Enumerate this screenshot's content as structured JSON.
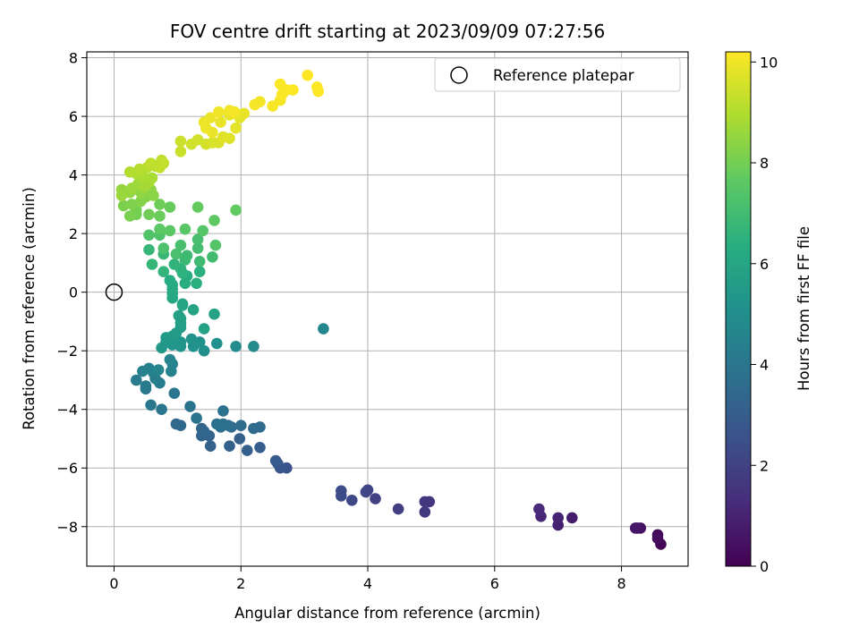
{
  "chart_data": {
    "type": "scatter",
    "title": "FOV centre drift starting at 2023/09/09 07:27:56",
    "xlabel": "Angular distance from reference (arcmin)",
    "ylabel": "Rotation from reference (arcmin)",
    "colorbar_label": "Hours from first FF file",
    "xlim": [
      -0.43,
      9.05
    ],
    "ylim": [
      -9.35,
      8.2
    ],
    "clim": [
      0,
      10.2
    ],
    "x_ticks": [
      0,
      2,
      4,
      6,
      8
    ],
    "y_ticks": [
      -8,
      -6,
      -4,
      -2,
      0,
      2,
      4,
      6,
      8
    ],
    "colorbar_ticks": [
      0,
      2,
      4,
      6,
      8,
      10
    ],
    "grid": true,
    "legend": {
      "position": "top-right",
      "entries": [
        "Reference platepar"
      ]
    },
    "reference_point": {
      "x": 0,
      "y": 0
    },
    "colormap": "viridis",
    "points": [
      [
        8.62,
        -8.6,
        0.1
      ],
      [
        8.57,
        -8.28,
        0.2
      ],
      [
        8.57,
        -8.4,
        0.3
      ],
      [
        8.3,
        -8.05,
        0.45
      ],
      [
        8.25,
        -8.05,
        0.55
      ],
      [
        8.22,
        -8.05,
        0.65
      ],
      [
        7.22,
        -7.7,
        0.8
      ],
      [
        7.0,
        -7.95,
        0.9
      ],
      [
        7.0,
        -7.7,
        1.0
      ],
      [
        6.73,
        -7.65,
        1.1
      ],
      [
        6.7,
        -7.4,
        1.2
      ],
      [
        4.97,
        -7.15,
        1.5
      ],
      [
        4.9,
        -7.15,
        1.6
      ],
      [
        4.9,
        -7.5,
        1.7
      ],
      [
        4.48,
        -7.4,
        1.85
      ],
      [
        4.12,
        -7.05,
        1.95
      ],
      [
        4.0,
        -6.75,
        2.05
      ],
      [
        3.97,
        -6.82,
        2.1
      ],
      [
        3.75,
        -7.1,
        2.2
      ],
      [
        3.58,
        -6.95,
        2.3
      ],
      [
        3.58,
        -6.78,
        2.35
      ],
      [
        2.72,
        -6.0,
        2.6
      ],
      [
        2.62,
        -6.0,
        2.7
      ],
      [
        2.58,
        -5.85,
        2.8
      ],
      [
        2.55,
        -5.75,
        2.9
      ],
      [
        2.3,
        -5.3,
        3.0
      ],
      [
        2.1,
        -5.4,
        3.05
      ],
      [
        1.98,
        -5.0,
        3.1
      ],
      [
        1.82,
        -5.25,
        3.15
      ],
      [
        1.52,
        -5.25,
        3.2
      ],
      [
        1.5,
        -4.9,
        3.25
      ],
      [
        1.42,
        -4.75,
        3.3
      ],
      [
        1.38,
        -4.9,
        3.3
      ],
      [
        1.38,
        -4.65,
        3.35
      ],
      [
        1.05,
        -4.55,
        3.4
      ],
      [
        0.98,
        -4.5,
        3.45
      ],
      [
        2.3,
        -4.6,
        3.5
      ],
      [
        2.2,
        -4.65,
        3.55
      ],
      [
        2.0,
        -4.55,
        3.6
      ],
      [
        1.85,
        -4.6,
        3.6
      ],
      [
        1.8,
        -4.55,
        3.65
      ],
      [
        1.72,
        -4.5,
        3.7
      ],
      [
        1.68,
        -4.6,
        3.75
      ],
      [
        1.72,
        -4.05,
        3.8
      ],
      [
        1.62,
        -4.5,
        3.8
      ],
      [
        1.3,
        -4.3,
        3.85
      ],
      [
        1.2,
        -3.9,
        3.9
      ],
      [
        0.95,
        -3.45,
        3.95
      ],
      [
        0.75,
        -4.0,
        4.0
      ],
      [
        0.58,
        -3.85,
        4.05
      ],
      [
        0.5,
        -3.3,
        4.1
      ],
      [
        0.5,
        -3.2,
        4.15
      ],
      [
        0.35,
        -3.0,
        4.2
      ],
      [
        0.72,
        -3.1,
        4.25
      ],
      [
        0.65,
        -2.95,
        4.3
      ],
      [
        0.62,
        -2.75,
        4.35
      ],
      [
        0.55,
        -2.6,
        4.4
      ],
      [
        0.45,
        -2.7,
        4.45
      ],
      [
        0.9,
        -2.7,
        4.5
      ],
      [
        0.92,
        -2.45,
        4.5
      ],
      [
        0.88,
        -2.3,
        4.55
      ],
      [
        0.7,
        -2.65,
        4.6
      ],
      [
        3.3,
        -1.25,
        4.7
      ],
      [
        2.2,
        -1.85,
        4.8
      ],
      [
        1.92,
        -1.85,
        4.9
      ],
      [
        1.42,
        -2.0,
        5.0
      ],
      [
        1.62,
        -1.75,
        5.05
      ],
      [
        1.35,
        -1.7,
        5.1
      ],
      [
        1.25,
        -1.85,
        5.15
      ],
      [
        1.22,
        -1.6,
        5.2
      ],
      [
        1.05,
        -1.85,
        5.2
      ],
      [
        1.05,
        -1.7,
        5.25
      ],
      [
        1.0,
        -1.75,
        5.3
      ],
      [
        0.92,
        -1.8,
        5.3
      ],
      [
        0.82,
        -1.7,
        5.35
      ],
      [
        0.75,
        -1.9,
        5.4
      ],
      [
        0.82,
        -1.55,
        5.45
      ],
      [
        0.92,
        -1.5,
        5.5
      ],
      [
        0.98,
        -1.4,
        5.55
      ],
      [
        1.05,
        -1.2,
        5.6
      ],
      [
        1.05,
        -1.05,
        5.65
      ],
      [
        1.05,
        -0.9,
        5.7
      ],
      [
        1.02,
        -0.8,
        5.75
      ],
      [
        1.42,
        -1.25,
        5.8
      ],
      [
        1.58,
        -0.75,
        5.85
      ],
      [
        1.25,
        -0.6,
        5.9
      ],
      [
        1.08,
        -0.45,
        5.95
      ],
      [
        1.08,
        -0.4,
        6.0
      ],
      [
        0.92,
        -0.2,
        6.05
      ],
      [
        0.92,
        -0.05,
        6.1
      ],
      [
        0.92,
        0.1,
        6.15
      ],
      [
        0.92,
        0.25,
        6.2
      ],
      [
        0.88,
        0.4,
        6.25
      ],
      [
        1.12,
        0.3,
        6.3
      ],
      [
        1.15,
        0.55,
        6.35
      ],
      [
        1.3,
        0.3,
        6.4
      ],
      [
        1.35,
        0.7,
        6.45
      ],
      [
        1.08,
        0.65,
        6.5
      ],
      [
        1.05,
        0.8,
        6.55
      ],
      [
        0.95,
        0.95,
        6.6
      ],
      [
        0.78,
        0.7,
        6.65
      ],
      [
        0.6,
        0.95,
        6.7
      ],
      [
        0.55,
        1.45,
        6.75
      ],
      [
        0.78,
        1.3,
        6.8
      ],
      [
        1.12,
        1.1,
        6.85
      ],
      [
        1.15,
        1.25,
        6.9
      ],
      [
        1.35,
        1.05,
        6.95
      ],
      [
        1.55,
        1.2,
        7.0
      ],
      [
        1.32,
        1.5,
        7.05
      ],
      [
        1.32,
        1.8,
        7.1
      ],
      [
        1.05,
        1.6,
        7.15
      ],
      [
        0.98,
        1.3,
        7.2
      ],
      [
        0.78,
        1.5,
        7.25
      ],
      [
        0.72,
        1.95,
        7.3
      ],
      [
        0.55,
        1.95,
        7.35
      ],
      [
        1.6,
        1.6,
        7.4
      ],
      [
        1.4,
        2.1,
        7.45
      ],
      [
        1.12,
        2.15,
        7.5
      ],
      [
        0.88,
        2.1,
        7.55
      ],
      [
        0.72,
        2.15,
        7.6
      ],
      [
        1.58,
        2.45,
        7.65
      ],
      [
        1.92,
        2.8,
        7.7
      ],
      [
        1.32,
        2.9,
        7.75
      ],
      [
        0.88,
        2.9,
        7.8
      ],
      [
        0.72,
        2.6,
        7.85
      ],
      [
        0.72,
        3.0,
        7.9
      ],
      [
        0.55,
        2.65,
        7.95
      ],
      [
        0.35,
        2.65,
        8.0
      ],
      [
        0.35,
        2.8,
        8.05
      ],
      [
        0.25,
        2.6,
        8.1
      ],
      [
        0.15,
        2.95,
        8.15
      ],
      [
        0.28,
        3.0,
        8.2
      ],
      [
        0.42,
        3.1,
        8.25
      ],
      [
        0.5,
        3.25,
        8.3
      ],
      [
        0.62,
        3.3,
        8.35
      ],
      [
        0.58,
        3.5,
        8.4
      ],
      [
        0.42,
        3.4,
        8.45
      ],
      [
        0.25,
        3.4,
        8.5
      ],
      [
        0.12,
        3.5,
        8.55
      ],
      [
        0.12,
        3.3,
        8.6
      ],
      [
        0.28,
        3.55,
        8.65
      ],
      [
        0.38,
        3.7,
        8.7
      ],
      [
        0.48,
        3.6,
        8.75
      ],
      [
        0.55,
        3.75,
        8.8
      ],
      [
        0.6,
        3.9,
        8.85
      ],
      [
        0.45,
        3.95,
        8.9
      ],
      [
        0.35,
        4.05,
        8.95
      ],
      [
        0.25,
        4.1,
        9.0
      ],
      [
        0.4,
        4.2,
        9.05
      ],
      [
        0.52,
        4.25,
        9.1
      ],
      [
        0.65,
        4.3,
        9.15
      ],
      [
        0.75,
        4.5,
        9.2
      ],
      [
        0.58,
        4.4,
        9.25
      ],
      [
        0.72,
        4.25,
        9.25
      ],
      [
        0.78,
        4.4,
        9.3
      ],
      [
        1.05,
        4.8,
        9.35
      ],
      [
        1.05,
        5.15,
        9.4
      ],
      [
        1.22,
        5.05,
        9.45
      ],
      [
        1.32,
        5.2,
        9.5
      ],
      [
        1.45,
        5.05,
        9.55
      ],
      [
        1.55,
        5.1,
        9.6
      ],
      [
        1.65,
        5.1,
        9.65
      ],
      [
        1.72,
        5.3,
        9.7
      ],
      [
        1.82,
        5.25,
        9.75
      ],
      [
        1.92,
        5.6,
        9.8
      ],
      [
        1.98,
        5.95,
        9.8
      ],
      [
        2.05,
        6.1,
        9.85
      ],
      [
        1.82,
        6.05,
        9.85
      ],
      [
        1.68,
        5.8,
        9.9
      ],
      [
        1.55,
        5.45,
        9.9
      ],
      [
        1.45,
        5.6,
        9.95
      ],
      [
        1.42,
        5.8,
        9.95
      ],
      [
        1.52,
        5.95,
        9.95
      ],
      [
        1.65,
        6.15,
        10.0
      ],
      [
        1.82,
        6.2,
        10.0
      ],
      [
        1.9,
        6.15,
        10.05
      ],
      [
        2.22,
        6.4,
        10.05
      ],
      [
        2.3,
        6.5,
        10.05
      ],
      [
        2.5,
        6.35,
        10.1
      ],
      [
        2.62,
        6.55,
        10.1
      ],
      [
        2.65,
        6.75,
        10.15
      ],
      [
        2.62,
        7.1,
        10.15
      ],
      [
        2.72,
        6.9,
        10.15
      ],
      [
        2.82,
        6.9,
        10.2
      ],
      [
        3.05,
        7.4,
        10.2
      ],
      [
        3.2,
        7.0,
        10.2
      ],
      [
        3.22,
        6.85,
        10.2
      ]
    ]
  }
}
